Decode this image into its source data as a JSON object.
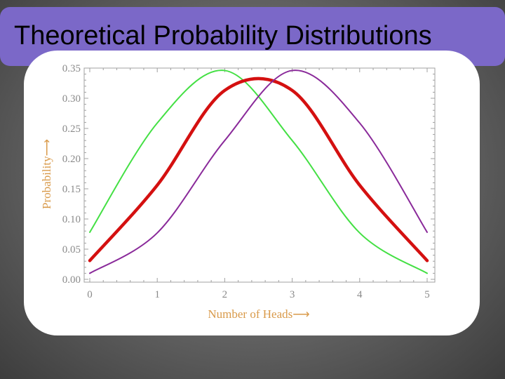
{
  "slide": {
    "title": "Theoretical Probability Distributions",
    "colors": {
      "title_bar": "#7b68c8",
      "panel": "#ffffff"
    }
  },
  "chart_data": {
    "type": "line",
    "xlabel": "Number of Heads⟶",
    "ylabel": "Probability⟶",
    "xlim": [
      0,
      5
    ],
    "ylim": [
      0,
      0.35
    ],
    "x_ticks": [
      0,
      1,
      2,
      3,
      4,
      5
    ],
    "x_tick_labels": [
      "0",
      "1",
      "2",
      "3",
      "4",
      "5"
    ],
    "y_ticks": [
      0,
      0.05,
      0.1,
      0.15,
      0.2,
      0.25,
      0.3,
      0.35
    ],
    "y_tick_labels": [
      "0.00",
      "0.05",
      "0.10",
      "0.15",
      "0.20",
      "0.25",
      "0.30",
      "0.35"
    ],
    "x": [
      0,
      1,
      2,
      3,
      4,
      5
    ],
    "series": [
      {
        "color": "#44e044",
        "width": 2,
        "values": [
          0.078,
          0.259,
          0.346,
          0.23,
          0.077,
          0.01
        ]
      },
      {
        "color": "#d41010",
        "width": 4.5,
        "values": [
          0.031,
          0.156,
          0.313,
          0.313,
          0.156,
          0.031
        ]
      },
      {
        "color": "#8a2a9a",
        "width": 2,
        "values": [
          0.01,
          0.077,
          0.23,
          0.346,
          0.259,
          0.078
        ]
      }
    ]
  }
}
